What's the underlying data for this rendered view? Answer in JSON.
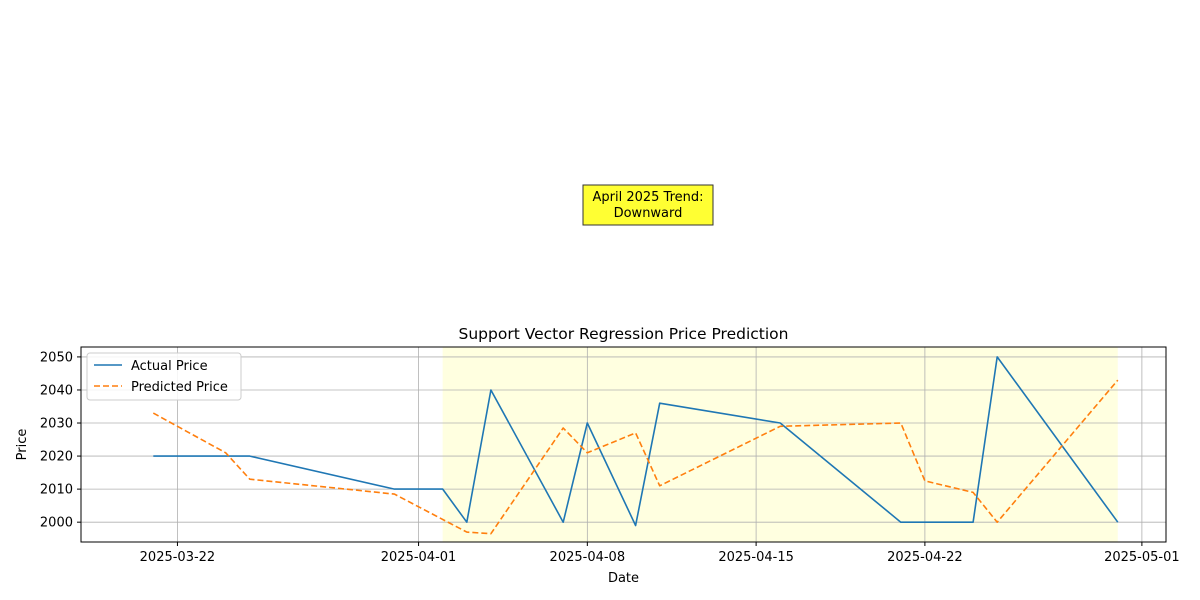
{
  "chart_data": {
    "type": "line",
    "title": "Support Vector Regression Price Prediction",
    "xlabel": "Date",
    "ylabel": "Price",
    "xlim": [
      "2025-03-18",
      "2025-05-02"
    ],
    "ylim": [
      1994,
      2053
    ],
    "xticks": [
      "2025-03-22",
      "2025-04-01",
      "2025-04-08",
      "2025-04-15",
      "2025-04-22",
      "2025-05-01"
    ],
    "yticks": [
      2000,
      2010,
      2020,
      2030,
      2040,
      2050
    ],
    "grid": true,
    "legend_position": "top-left",
    "highlight_span": {
      "start": "2025-04-02",
      "end": "2025-04-30",
      "color": "#ffffe0"
    },
    "annotation": {
      "lines": [
        "April 2025 Trend:",
        "Downward"
      ],
      "background": "#ffff33"
    },
    "series": [
      {
        "name": "Actual Price",
        "color": "#1f77b4",
        "linestyle": "solid",
        "x": [
          "2025-03-21",
          "2025-03-25",
          "2025-03-31",
          "2025-04-02",
          "2025-04-03",
          "2025-04-04",
          "2025-04-07",
          "2025-04-08",
          "2025-04-10",
          "2025-04-11",
          "2025-04-16",
          "2025-04-21",
          "2025-04-24",
          "2025-04-25",
          "2025-04-30"
        ],
        "y": [
          2020,
          2020,
          2010,
          2010,
          2000,
          2040,
          2000,
          2030,
          1999,
          2036,
          2030,
          2000,
          2000,
          2050,
          2000
        ]
      },
      {
        "name": "Predicted Price",
        "color": "#ff7f0e",
        "linestyle": "dashed",
        "x": [
          "2025-03-21",
          "2025-03-24",
          "2025-03-25",
          "2025-03-31",
          "2025-04-03",
          "2025-04-04",
          "2025-04-07",
          "2025-04-08",
          "2025-04-10",
          "2025-04-11",
          "2025-04-16",
          "2025-04-21",
          "2025-04-22",
          "2025-04-24",
          "2025-04-25",
          "2025-04-30"
        ],
        "y": [
          2033,
          2021,
          2013,
          2008.5,
          1997,
          1996.5,
          2028.5,
          2021,
          2027,
          2011,
          2029,
          2030,
          2012.5,
          2009,
          2000,
          2043
        ]
      }
    ]
  }
}
